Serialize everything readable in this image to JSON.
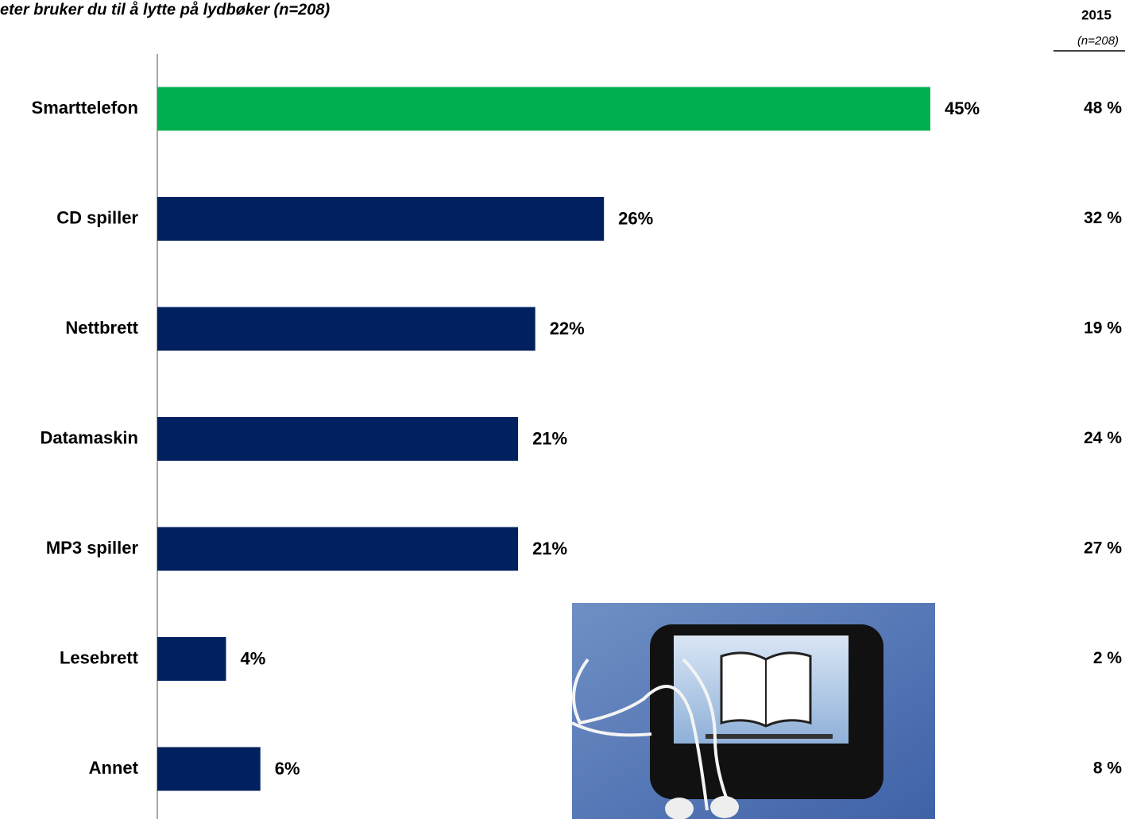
{
  "chart_data": {
    "type": "bar",
    "orientation": "horizontal",
    "title": "eter bruker du til å lytte på lydbøker (n=208)",
    "categories": [
      "Smarttelefon",
      "CD spiller",
      "Nettbrett",
      "Datamaskin",
      "MP3 spiller",
      "Lesebrett",
      "Annet"
    ],
    "values": [
      45,
      26,
      22,
      21,
      21,
      4,
      6
    ],
    "value_labels": [
      "45%",
      "26%",
      "22%",
      "21%",
      "21%",
      "4%",
      "6%"
    ],
    "colors": [
      "#00b050",
      "#002060",
      "#002060",
      "#002060",
      "#002060",
      "#002060",
      "#002060"
    ],
    "comparison": {
      "title": "2015",
      "subtitle": "(n=208)",
      "values": [
        48,
        32,
        19,
        24,
        27,
        2,
        8
      ],
      "value_labels": [
        "48 %",
        "32 %",
        "19 %",
        "24 %",
        "27 %",
        "2 %",
        "8 %"
      ]
    }
  }
}
